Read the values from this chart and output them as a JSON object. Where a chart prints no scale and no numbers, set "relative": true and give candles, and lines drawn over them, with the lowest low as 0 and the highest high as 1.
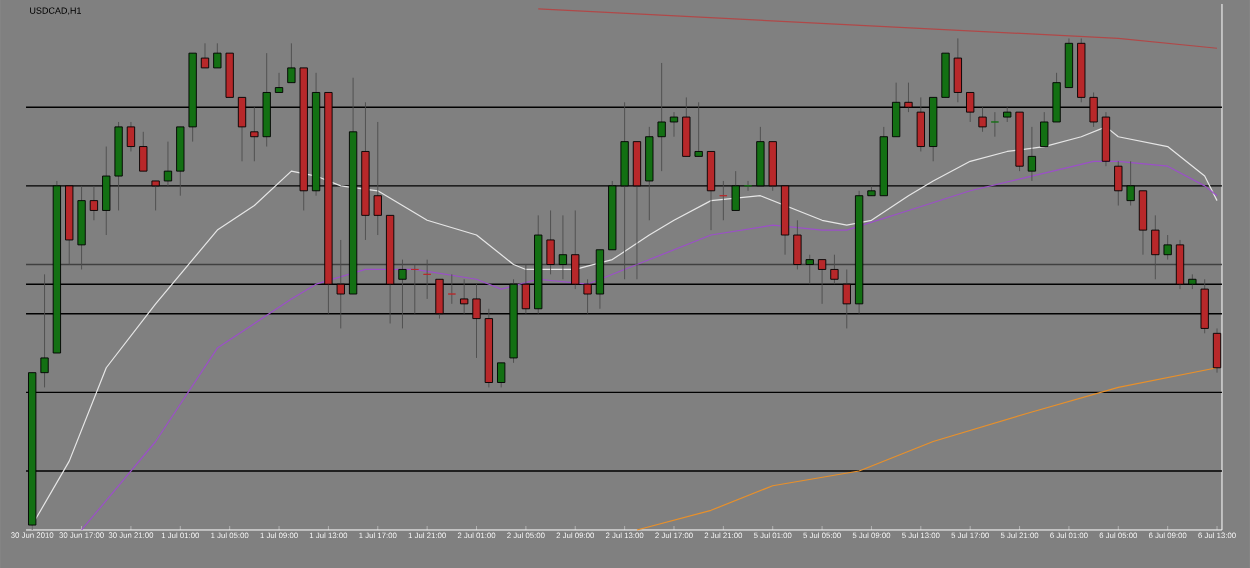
{
  "chart_data": {
    "type": "candlestick",
    "title": "USDCAD,H1",
    "relative": true,
    "categories": [
      "30 Jun 2010",
      null,
      null,
      null,
      "30 Jun 17:00",
      null,
      null,
      null,
      "30 Jun 21:00",
      null,
      null,
      null,
      "1 Jul 01:00",
      null,
      null,
      null,
      "1 Jul 05:00",
      null,
      null,
      null,
      "1 Jul 09:00",
      null,
      null,
      null,
      "1 Jul 13:00",
      null,
      null,
      null,
      "1 Jul 17:00",
      null,
      null,
      null,
      "1 Jul 21:00",
      null,
      null,
      null,
      "2 Jul 01:00",
      null,
      null,
      null,
      "2 Jul 05:00",
      null,
      null,
      null,
      "2 Jul 09:00",
      null,
      null,
      null,
      "2 Jul 13:00",
      null,
      null,
      null,
      "2 Jul 17:00",
      null,
      null,
      null,
      "2 Jul 21:00",
      null,
      null,
      null,
      "5 Jul 01:00",
      null,
      null,
      null,
      "5 Jul 05:00",
      null,
      null,
      null,
      "5 Jul 09:00",
      null,
      null,
      null,
      "5 Jul 13:00",
      null,
      null,
      null,
      "5 Jul 17:00",
      null,
      null,
      null,
      "5 Jul 21:00",
      null,
      null,
      null,
      "6 Jul 01:00",
      null,
      null,
      null,
      "6 Jul 05:00",
      null,
      null,
      null,
      "6 Jul 09:00",
      null,
      null,
      null,
      "6 Jul 13:00"
    ],
    "colors": [
      "#137013",
      "#137013",
      "#137013",
      "#b8282a",
      "#137013",
      "#b8282a",
      "#137013",
      "#137013",
      "#b8282a",
      "#b8282a",
      "#b8282a",
      "#137013",
      "#137013",
      "#137013",
      "#b8282a",
      "#137013",
      "#b8282a",
      "#b8282a",
      "#b8282a",
      "#137013",
      "#137013",
      "#137013",
      "#b8282a",
      "#137013",
      "#b8282a",
      "#b8282a",
      "#137013",
      "#b8282a",
      "#b8282a",
      "#b8282a",
      "#137013",
      "#b8282a",
      "#b8282a",
      "#b8282a",
      "#b8282a",
      "#b8282a",
      "#b8282a",
      "#b8282a",
      "#137013",
      "#137013",
      "#b8282a",
      "#137013",
      "#b8282a",
      "#137013",
      "#b8282a",
      "#b8282a",
      "#137013",
      "#137013",
      "#137013",
      "#b8282a",
      "#137013",
      "#137013",
      "#137013",
      "#b8282a",
      "#137013",
      "#b8282a",
      "#b8282a",
      "#137013",
      "#137013",
      "#137013",
      "#b8282a",
      "#b8282a",
      "#b8282a",
      "#137013",
      "#b8282a",
      "#b8282a",
      "#b8282a",
      "#137013",
      "#137013",
      "#137013",
      "#137013",
      "#b8282a",
      "#b8282a",
      "#137013",
      "#137013",
      "#b8282a",
      "#b8282a",
      "#b8282a",
      "#137013",
      "#137013",
      "#b8282a",
      "#137013",
      "#137013",
      "#137013",
      "#137013",
      "#b8282a",
      "#b8282a",
      "#b8282a",
      "#b8282a",
      "#137013",
      "#b8282a",
      "#b8282a",
      "#137013",
      "#b8282a",
      "#137013",
      "#b8282a",
      "#b8282a"
    ],
    "ohlc": [
      [
        0.01,
        0.32,
        0,
        0.32
      ],
      [
        0.32,
        0.52,
        0.29,
        0.35
      ],
      [
        0.36,
        0.71,
        0.36,
        0.7
      ],
      [
        0.7,
        0.7,
        0.54,
        0.59
      ],
      [
        0.58,
        0.7,
        0.53,
        0.67
      ],
      [
        0.67,
        0.7,
        0.63,
        0.65
      ],
      [
        0.65,
        0.78,
        0.6,
        0.72
      ],
      [
        0.72,
        0.83,
        0.65,
        0.82
      ],
      [
        0.82,
        0.83,
        0.77,
        0.78
      ],
      [
        0.78,
        0.81,
        0.73,
        0.73
      ],
      [
        0.71,
        0.71,
        0.65,
        0.7
      ],
      [
        0.71,
        0.79,
        0.7,
        0.73
      ],
      [
        0.73,
        0.82,
        0.68,
        0.82
      ],
      [
        0.82,
        0.97,
        0.79,
        0.97
      ],
      [
        0.96,
        0.99,
        0.94,
        0.94
      ],
      [
        0.94,
        0.99,
        0.94,
        0.97
      ],
      [
        0.97,
        0.97,
        0.88,
        0.88
      ],
      [
        0.88,
        0.88,
        0.75,
        0.82
      ],
      [
        0.81,
        0.86,
        0.75,
        0.8
      ],
      [
        0.8,
        0.97,
        0.78,
        0.89
      ],
      [
        0.89,
        0.93,
        0.89,
        0.9
      ],
      [
        0.91,
        0.99,
        0.91,
        0.94
      ],
      [
        0.94,
        0.94,
        0.65,
        0.69
      ],
      [
        0.69,
        0.93,
        0.68,
        0.89
      ],
      [
        0.89,
        0.89,
        0.44,
        0.5
      ],
      [
        0.5,
        0.59,
        0.41,
        0.48
      ],
      [
        0.48,
        0.92,
        0.48,
        0.81
      ],
      [
        0.77,
        0.87,
        0.59,
        0.64
      ],
      [
        0.68,
        0.83,
        0.6,
        0.64
      ],
      [
        0.64,
        0.64,
        0.42,
        0.5
      ],
      [
        0.51,
        0.55,
        0.41,
        0.53
      ],
      [
        0.53,
        0.54,
        0.44,
        0.53
      ],
      [
        0.52,
        0.55,
        0.47,
        0.52
      ],
      [
        0.51,
        0.51,
        0.43,
        0.44
      ],
      [
        0.48,
        0.52,
        0.46,
        0.48
      ],
      [
        0.47,
        0.51,
        0.44,
        0.46
      ],
      [
        0.47,
        0.5,
        0.35,
        0.43
      ],
      [
        0.43,
        0.45,
        0.29,
        0.3
      ],
      [
        0.3,
        0.34,
        0.29,
        0.34
      ],
      [
        0.35,
        0.51,
        0.34,
        0.5
      ],
      [
        0.5,
        0.54,
        0.44,
        0.45
      ],
      [
        0.45,
        0.64,
        0.44,
        0.6
      ],
      [
        0.59,
        0.65,
        0.52,
        0.54
      ],
      [
        0.54,
        0.64,
        0.51,
        0.56
      ],
      [
        0.56,
        0.65,
        0.49,
        0.5
      ],
      [
        0.5,
        0.51,
        0.44,
        0.48
      ],
      [
        0.48,
        0.57,
        0.45,
        0.57
      ],
      [
        0.57,
        0.71,
        0.57,
        0.7
      ],
      [
        0.7,
        0.87,
        0.51,
        0.79
      ],
      [
        0.79,
        0.79,
        0.51,
        0.7
      ],
      [
        0.71,
        0.82,
        0.63,
        0.8
      ],
      [
        0.8,
        0.95,
        0.73,
        0.83
      ],
      [
        0.83,
        0.85,
        0.8,
        0.84
      ],
      [
        0.84,
        0.88,
        0.76,
        0.76
      ],
      [
        0.76,
        0.87,
        0.76,
        0.77
      ],
      [
        0.77,
        0.77,
        0.61,
        0.69
      ],
      [
        0.68,
        0.71,
        0.63,
        0.68
      ],
      [
        0.65,
        0.73,
        0.65,
        0.7
      ],
      [
        0.7,
        0.71,
        0.69,
        0.7
      ],
      [
        0.7,
        0.82,
        0.7,
        0.79
      ],
      [
        0.79,
        0.79,
        0.69,
        0.7
      ],
      [
        0.7,
        0.7,
        0.56,
        0.6
      ],
      [
        0.6,
        0.63,
        0.53,
        0.54
      ],
      [
        0.54,
        0.56,
        0.5,
        0.55
      ],
      [
        0.55,
        0.55,
        0.46,
        0.53
      ],
      [
        0.53,
        0.56,
        0.5,
        0.51
      ],
      [
        0.5,
        0.53,
        0.41,
        0.46
      ],
      [
        0.46,
        0.69,
        0.44,
        0.68
      ],
      [
        0.68,
        0.7,
        0.68,
        0.69
      ],
      [
        0.68,
        0.82,
        0.68,
        0.8
      ],
      [
        0.8,
        0.91,
        0.8,
        0.87
      ],
      [
        0.87,
        0.91,
        0.85,
        0.86
      ],
      [
        0.85,
        0.88,
        0.77,
        0.78
      ],
      [
        0.78,
        0.88,
        0.75,
        0.88
      ],
      [
        0.88,
        0.97,
        0.88,
        0.97
      ],
      [
        0.96,
        1.0,
        0.87,
        0.89
      ],
      [
        0.89,
        0.89,
        0.83,
        0.85
      ],
      [
        0.84,
        0.86,
        0.81,
        0.82
      ],
      [
        0.83,
        0.85,
        0.8,
        0.83
      ],
      [
        0.84,
        0.86,
        0.83,
        0.85
      ],
      [
        0.85,
        0.85,
        0.73,
        0.74
      ],
      [
        0.73,
        0.82,
        0.71,
        0.76
      ],
      [
        0.78,
        0.85,
        0.78,
        0.83
      ],
      [
        0.83,
        0.93,
        0.83,
        0.91
      ],
      [
        0.9,
        1.0,
        0.9,
        0.99
      ],
      [
        0.99,
        1.0,
        0.87,
        0.88
      ],
      [
        0.88,
        0.89,
        0.82,
        0.83
      ],
      [
        0.84,
        0.85,
        0.74,
        0.75
      ],
      [
        0.74,
        0.75,
        0.66,
        0.69
      ],
      [
        0.67,
        0.75,
        0.66,
        0.7
      ],
      [
        0.69,
        0.69,
        0.56,
        0.61
      ],
      [
        0.61,
        0.64,
        0.51,
        0.56
      ],
      [
        0.56,
        0.6,
        0.55,
        0.58
      ],
      [
        0.58,
        0.59,
        0.49,
        0.5
      ],
      [
        0.5,
        0.52,
        0.49,
        0.51
      ],
      [
        0.49,
        0.51,
        0.4,
        0.41
      ],
      [
        0.4,
        0.41,
        0.32,
        0.33
      ]
    ],
    "series": [
      {
        "type": "line",
        "color": "#e6e6e6",
        "values": [
          0.01,
          null,
          null,
          0.14,
          null,
          null,
          0.33,
          null,
          null,
          null,
          0.46,
          null,
          null,
          null,
          null,
          0.61,
          null,
          null,
          0.66,
          null,
          null,
          0.73,
          null,
          0.72,
          null,
          0.7,
          null,
          null,
          0.69,
          null,
          null,
          null,
          0.63,
          null,
          null,
          null,
          0.6,
          null,
          0.56,
          0.54,
          0.53,
          null,
          null,
          null,
          0.53,
          null,
          null,
          0.55,
          null,
          null,
          0.6,
          null,
          0.63,
          null,
          null,
          0.67,
          null,
          null,
          null,
          0.68,
          null,
          0.66,
          null,
          null,
          0.63,
          null,
          0.62,
          null,
          0.63,
          null,
          null,
          0.68,
          null,
          0.71,
          null,
          null,
          0.75,
          null,
          null,
          0.77,
          null,
          null,
          0.78,
          null,
          null,
          0.8,
          null,
          0.82,
          0.8,
          null,
          null,
          null,
          0.78,
          null,
          null,
          0.72,
          0.67
        ]
      },
      {
        "type": "line",
        "color": "#9b4fc8",
        "values": [
          null,
          null,
          null,
          null,
          0,
          null,
          null,
          null,
          null,
          null,
          0.18,
          null,
          null,
          null,
          null,
          0.37,
          null,
          null,
          null,
          null,
          null,
          0.47,
          null,
          0.5,
          null,
          null,
          null,
          0.53,
          null,
          null,
          null,
          0.53,
          null,
          null,
          null,
          null,
          0.51,
          null,
          0.49,
          null,
          null,
          0.51,
          null,
          null,
          null,
          0.5,
          null,
          null,
          null,
          0.54,
          null,
          null,
          null,
          null,
          null,
          0.6,
          null,
          null,
          null,
          null,
          0.62,
          null,
          null,
          null,
          0.61,
          null,
          0.61,
          null,
          null,
          null,
          null,
          0.65,
          null,
          null,
          null,
          null,
          0.69,
          null,
          null,
          null,
          null,
          0.72,
          null,
          null,
          null,
          null,
          0.75,
          null,
          0.75,
          null,
          null,
          null,
          0.74,
          null,
          null,
          0.7,
          0.68
        ]
      },
      {
        "type": "line",
        "color": "#e8902a",
        "values": [
          null,
          null,
          null,
          null,
          null,
          null,
          null,
          null,
          null,
          null,
          null,
          null,
          null,
          null,
          null,
          null,
          null,
          null,
          null,
          null,
          null,
          null,
          null,
          null,
          null,
          null,
          null,
          null,
          null,
          null,
          null,
          null,
          null,
          null,
          null,
          null,
          null,
          null,
          null,
          null,
          null,
          null,
          null,
          null,
          null,
          null,
          null,
          null,
          null,
          0,
          null,
          null,
          null,
          null,
          null,
          0.04,
          null,
          null,
          null,
          null,
          0.09,
          null,
          null,
          null,
          null,
          null,
          null,
          0.12,
          null,
          null,
          null,
          null,
          null,
          0.18,
          null,
          null,
          null,
          null,
          null,
          null,
          null,
          0.24,
          null,
          null,
          null,
          null,
          null,
          null,
          0.29,
          null,
          null,
          null,
          null,
          null,
          0.32,
          null,
          0.33
        ]
      },
      {
        "type": "line",
        "color": "#b04848",
        "values": [
          null,
          null,
          null,
          null,
          null,
          null,
          null,
          null,
          null,
          null,
          null,
          null,
          null,
          null,
          null,
          null,
          null,
          null,
          null,
          null,
          null,
          null,
          null,
          null,
          null,
          null,
          null,
          null,
          null,
          null,
          null,
          null,
          null,
          null,
          null,
          null,
          null,
          null,
          null,
          null,
          null,
          1.06,
          null,
          null,
          null,
          null,
          null,
          null,
          null,
          null,
          null,
          null,
          null,
          null,
          null,
          null,
          null,
          null,
          null,
          null,
          null,
          null,
          null,
          null,
          null,
          null,
          null,
          null,
          null,
          null,
          null,
          null,
          null,
          null,
          null,
          null,
          null,
          null,
          null,
          null,
          null,
          null,
          null,
          null,
          null,
          null,
          null,
          null,
          1.0,
          null,
          null,
          null,
          null,
          null,
          null,
          null,
          0.98
        ]
      }
    ],
    "ref_lines": [
      {
        "axis": "y",
        "value": 0.86,
        "color": "#000000"
      },
      {
        "axis": "y",
        "value": 0.7,
        "color": "#000000"
      },
      {
        "axis": "y",
        "value": 0.54,
        "color": "#404040"
      },
      {
        "axis": "y",
        "value": 0.5,
        "color": "#000000"
      },
      {
        "axis": "y",
        "value": 0.44,
        "color": "#000000"
      },
      {
        "axis": "y",
        "value": 0.28,
        "color": "#000000"
      },
      {
        "axis": "y",
        "value": 0.12,
        "color": "#000000"
      }
    ]
  }
}
